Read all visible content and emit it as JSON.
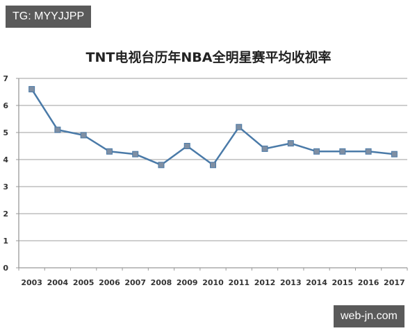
{
  "watermarks": {
    "top_left": "TG: MYYJJPP",
    "bottom_right": "web-jn.com"
  },
  "chart_data": {
    "type": "line",
    "title": "TNT电视台历年NBA全明星赛平均收视率",
    "xlabel": "",
    "ylabel": "",
    "categories": [
      "2003",
      "2004",
      "2005",
      "2006",
      "2007",
      "2008",
      "2009",
      "2010",
      "2011",
      "2012",
      "2013",
      "2014",
      "2015",
      "2016",
      "2017"
    ],
    "series": [
      {
        "name": "平均收视率",
        "values": [
          6.6,
          5.1,
          4.9,
          4.3,
          4.2,
          3.8,
          4.5,
          3.8,
          5.2,
          4.4,
          4.6,
          4.3,
          4.3,
          4.3,
          4.2
        ]
      }
    ],
    "ylim": [
      0,
      7
    ],
    "yticks": [
      0,
      1,
      2,
      3,
      4,
      5,
      6,
      7
    ],
    "grid": true,
    "legend": "none",
    "colors": {
      "line": "#4a7aa8",
      "marker": "#7f8fa3",
      "grid": "#b0b0b0"
    }
  }
}
